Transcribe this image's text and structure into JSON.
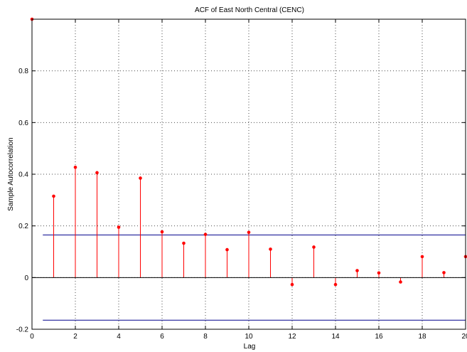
{
  "chart_data": {
    "type": "stem",
    "title": "ACF of East North Central (CENC)",
    "xlabel": "Lag",
    "ylabel": "Sample Autocorrelation",
    "xlim": [
      0,
      20
    ],
    "ylim": [
      -0.2,
      1.0
    ],
    "x_ticks": [
      0,
      2,
      4,
      6,
      8,
      10,
      12,
      14,
      16,
      18,
      20
    ],
    "y_ticks": [
      -0.2,
      0,
      0.2,
      0.4,
      0.6,
      0.8
    ],
    "grid": true,
    "lags": [
      0,
      1,
      2,
      3,
      4,
      5,
      6,
      7,
      8,
      9,
      10,
      11,
      12,
      13,
      14,
      15,
      16,
      17,
      18,
      19,
      20
    ],
    "values": [
      1.0,
      0.315,
      0.427,
      0.406,
      0.195,
      0.385,
      0.177,
      0.133,
      0.167,
      0.108,
      0.175,
      0.11,
      -0.027,
      0.118,
      -0.027,
      0.027,
      0.018,
      -0.017,
      0.081,
      0.019,
      0.081
    ],
    "confidence_bounds": [
      0.165,
      -0.165
    ],
    "colors": {
      "stem": "#ff0000",
      "bound": "#00008b",
      "axis": "#000000"
    }
  }
}
